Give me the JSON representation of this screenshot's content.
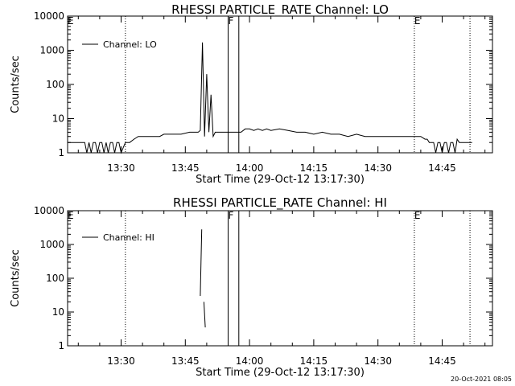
{
  "footer": {
    "stamp": "20-Oct-2021 08:05"
  },
  "chart_data": [
    {
      "type": "line",
      "title": "RHESSI PARTICLE_RATE Channel: LO",
      "xlabel": "Start Time (29-Oct-12 13:17:30)",
      "ylabel": "Counts/sec",
      "y_scale": "log",
      "ylim": [
        1,
        10000
      ],
      "xlim": [
        "13:17:30",
        "14:56:45"
      ],
      "x_ticks": [
        "13:30",
        "13:45",
        "14:00",
        "14:15",
        "14:30",
        "14:45"
      ],
      "y_ticks": [
        "1",
        "10",
        "100",
        "1000",
        "10000"
      ],
      "legend": {
        "position": "top-left",
        "entries": [
          "Channel: LO"
        ]
      },
      "markers": [
        {
          "label": "E",
          "time": "13:17:30",
          "style": "dotted"
        },
        {
          "label": "",
          "time": "13:31:00",
          "style": "dotted"
        },
        {
          "label": "F",
          "time": "13:55:00",
          "style": "solid"
        },
        {
          "label": "",
          "time": "13:57:30",
          "style": "solid"
        },
        {
          "label": "E",
          "time": "14:38:30",
          "style": "dotted"
        },
        {
          "label": "",
          "time": "14:51:30",
          "style": "dotted"
        }
      ],
      "series": [
        {
          "name": "Channel: LO",
          "x": [
            "13:17:30",
            "13:21:30",
            "13:22:00",
            "13:22:30",
            "13:23:00",
            "13:23:30",
            "13:24:00",
            "13:24:30",
            "13:25:00",
            "13:25:30",
            "13:26:00",
            "13:26:30",
            "13:27:00",
            "13:27:30",
            "13:28:00",
            "13:28:30",
            "13:29:00",
            "13:29:30",
            "13:30:00",
            "13:31:00",
            "13:32:00",
            "13:33:00",
            "13:34:00",
            "13:36:00",
            "13:38:00",
            "13:39:00",
            "13:40:00",
            "13:42:00",
            "13:44:00",
            "13:46:00",
            "13:47:00",
            "13:48:00",
            "13:48:30",
            "13:49:00",
            "13:49:30",
            "13:50:00",
            "13:50:30",
            "13:51:00",
            "13:51:30",
            "13:52:00",
            "13:53:00",
            "13:54:00",
            "13:55:00",
            "13:56:00",
            "13:57:00",
            "13:58:00",
            "13:59:00",
            "14:00:00",
            "14:01:00",
            "14:02:00",
            "14:03:00",
            "14:04:00",
            "14:05:00",
            "14:07:00",
            "14:09:00",
            "14:11:00",
            "14:13:00",
            "14:15:00",
            "14:17:00",
            "14:19:00",
            "14:21:00",
            "14:23:00",
            "14:25:00",
            "14:27:00",
            "14:29:00",
            "14:31:00",
            "14:33:00",
            "14:35:00",
            "14:37:00",
            "14:38:00",
            "14:39:00",
            "14:40:00",
            "14:41:00",
            "14:41:30",
            "14:42:00",
            "14:43:00",
            "14:43:30",
            "14:44:00",
            "14:44:30",
            "14:45:00",
            "14:45:30",
            "14:46:00",
            "14:46:30",
            "14:47:00",
            "14:47:30",
            "14:48:00",
            "14:48:30",
            "14:49:00",
            "14:49:30",
            "14:50:00",
            "14:51:00",
            "14:52:00"
          ],
          "y": [
            2,
            2,
            1,
            2,
            1,
            2,
            2,
            1,
            2,
            2,
            1,
            2,
            1,
            2,
            2,
            1,
            2,
            2,
            1,
            2,
            2,
            2.5,
            3,
            3,
            3,
            3,
            3.5,
            3.5,
            3.5,
            4,
            4,
            4,
            4.5,
            1700,
            3,
            200,
            4,
            50,
            3,
            4,
            4,
            4,
            4,
            4,
            4,
            4,
            5,
            5,
            4.5,
            5,
            4.5,
            5,
            4.5,
            5,
            4.5,
            4,
            4,
            3.5,
            4,
            3.5,
            3.5,
            3,
            3.5,
            3,
            3,
            3,
            3,
            3,
            3,
            3,
            3,
            3,
            2.5,
            2.5,
            2,
            2,
            1,
            2,
            2,
            1,
            2,
            2,
            1,
            2,
            2,
            1,
            2.5,
            2,
            2,
            2,
            2,
            2
          ]
        }
      ]
    },
    {
      "type": "line",
      "title": "RHESSI PARTICLE_RATE Channel: HI",
      "xlabel": "Start Time (29-Oct-12 13:17:30)",
      "ylabel": "Counts/sec",
      "y_scale": "log",
      "ylim": [
        1,
        10000
      ],
      "xlim": [
        "13:17:30",
        "14:56:45"
      ],
      "x_ticks": [
        "13:30",
        "13:45",
        "14:00",
        "14:15",
        "14:30",
        "14:45"
      ],
      "y_ticks": [
        "1",
        "10",
        "100",
        "1000",
        "10000"
      ],
      "legend": {
        "position": "top-left",
        "entries": [
          "Channel: HI"
        ]
      },
      "markers": [
        {
          "label": "E",
          "time": "13:17:30",
          "style": "dotted"
        },
        {
          "label": "",
          "time": "13:31:00",
          "style": "dotted"
        },
        {
          "label": "F",
          "time": "13:55:00",
          "style": "solid"
        },
        {
          "label": "",
          "time": "13:57:30",
          "style": "solid"
        },
        {
          "label": "E",
          "time": "14:38:30",
          "style": "dotted"
        },
        {
          "label": "",
          "time": "14:51:30",
          "style": "dotted"
        }
      ],
      "series": [
        {
          "name": "Channel: HI",
          "segments": [
            {
              "x": [
                "13:48:30",
                "13:48:40",
                "13:48:50"
              ],
              "y": [
                30,
                300,
                2800
              ]
            },
            {
              "x": [
                "13:49:20",
                "13:49:40"
              ],
              "y": [
                20,
                3.5
              ]
            }
          ]
        }
      ]
    }
  ]
}
